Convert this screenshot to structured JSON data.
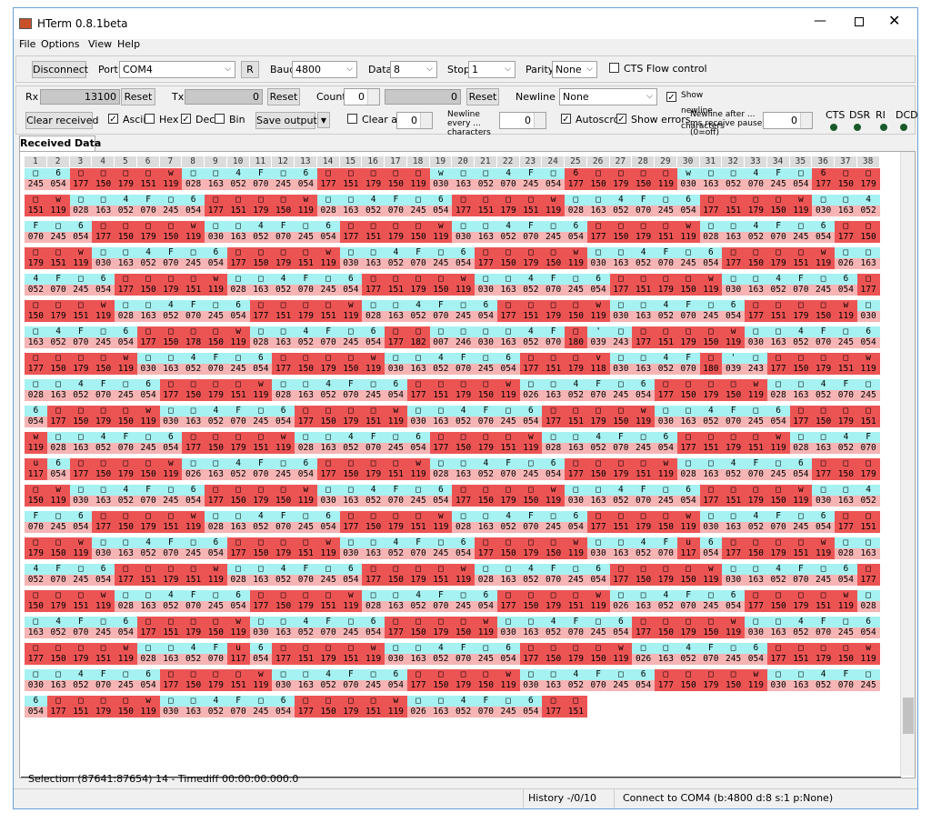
{
  "window": {
    "title": "HTerm 0.8.1beta"
  },
  "menu": [
    "File",
    "Options",
    "View",
    "Help"
  ],
  "connection": {
    "button": "Disconnect",
    "port_label": "Port",
    "port": "COM4",
    "refresh": "R",
    "baud_label": "Baud",
    "baud": "4800",
    "data_label": "Data",
    "data": "8",
    "stop_label": "Stop",
    "stop": "1",
    "parity_label": "Parity",
    "parity": "None",
    "cts_flow": "CTS Flow control",
    "cts_flow_checked": false
  },
  "counters": {
    "rx_label": "Rx",
    "rx": "13100",
    "rx_reset": "Reset",
    "tx_label": "Tx",
    "tx": "0",
    "tx_reset": "Reset",
    "count_label": "Count",
    "count": "0",
    "count_value": "0",
    "count_reset": "Reset",
    "newline_at_label": "Newline at",
    "newline_at": "None",
    "show_newline": "Show newline characters",
    "show_newline_checked": true
  },
  "display": {
    "clear_received": "Clear received",
    "ascii": "Ascii",
    "ascii_checked": true,
    "hex": "Hex",
    "hex_checked": false,
    "dec": "Dec",
    "dec_checked": true,
    "bin": "Bin",
    "bin_checked": false,
    "save_output": "Save output",
    "clear_at": "Clear at",
    "clear_at_checked": false,
    "clear_at_value": "0",
    "newline_every": "Newline every ... characters",
    "newline_every_value": "0",
    "autoscroll": "Autoscroll",
    "autoscroll_checked": true,
    "show_errors": "Show errors",
    "show_errors_checked": true,
    "newline_after": "Newline after ... ms receive pause (0=off)",
    "newline_after_value": "0",
    "signals": [
      "CTS",
      "DSR",
      "RI",
      "DCD"
    ]
  },
  "tab": "Received Data",
  "received": {
    "columns": [
      1,
      2,
      3,
      4,
      5,
      6,
      7,
      8,
      9,
      10,
      11,
      12,
      13,
      14,
      15,
      16,
      17,
      18,
      19,
      20,
      21,
      22,
      23,
      24,
      25,
      26,
      27,
      28,
      29,
      30,
      31,
      32,
      33,
      34,
      35,
      36,
      37,
      38
    ],
    "rows": [
      {
        "ascii": "□6□□□□w□□4F□6□□□□□w□□4F□6□□□□w□□4F□6□□□",
        "dec": [
          "245",
          "054",
          "177",
          "150",
          "179",
          "151",
          "119",
          "028",
          "163",
          "052",
          "070",
          "245",
          "054",
          "177",
          "151",
          "179",
          "150",
          "119",
          "030",
          "163",
          "052",
          "070",
          "245",
          "054",
          "177",
          "150",
          "179",
          "150",
          "119",
          "030",
          "163",
          "052",
          "070",
          "245",
          "054",
          "177",
          "150",
          "179"
        ]
      },
      {
        "ascii": "□w□□4F□6□□□□w□□4F□6□□□□w□□4F□6□□□□w□□4",
        "dec": [
          "151",
          "119",
          "028",
          "163",
          "052",
          "070",
          "245",
          "054",
          "177",
          "151",
          "179",
          "150",
          "119",
          "028",
          "163",
          "052",
          "070",
          "245",
          "054",
          "177",
          "151",
          "179",
          "151",
          "119",
          "028",
          "163",
          "052",
          "070",
          "245",
          "054",
          "177",
          "151",
          "179",
          "150",
          "119",
          "030",
          "163",
          "052"
        ]
      },
      {
        "ascii": "F□6□□□□w□□4F□6□□□□w□□4F□6□□□□w□□4F□6□□",
        "dec": [
          "070",
          "245",
          "054",
          "177",
          "150",
          "179",
          "150",
          "119",
          "030",
          "163",
          "052",
          "070",
          "245",
          "054",
          "177",
          "151",
          "179",
          "150",
          "119",
          "030",
          "163",
          "052",
          "070",
          "245",
          "054",
          "177",
          "150",
          "179",
          "151",
          "119",
          "028",
          "163",
          "052",
          "070",
          "245",
          "054",
          "177",
          "150"
        ]
      },
      {
        "ascii": "□□w□□4F□6□□□□w□□4F□6□□□□w□□4F□6□□□□w□□",
        "dec": [
          "179",
          "151",
          "119",
          "030",
          "163",
          "052",
          "070",
          "245",
          "054",
          "177",
          "150",
          "179",
          "151",
          "119",
          "030",
          "163",
          "052",
          "070",
          "245",
          "054",
          "177",
          "150",
          "179",
          "150",
          "119",
          "030",
          "163",
          "052",
          "070",
          "245",
          "054",
          "177",
          "150",
          "179",
          "151",
          "119",
          "026",
          "163"
        ]
      },
      {
        "ascii": "4F□6□□□□w□□4F□6□□□□w□□4F□6□□□□w□□4F□6□",
        "dec": [
          "052",
          "070",
          "245",
          "054",
          "177",
          "150",
          "179",
          "151",
          "119",
          "028",
          "163",
          "052",
          "070",
          "245",
          "054",
          "177",
          "151",
          "179",
          "150",
          "119",
          "030",
          "163",
          "052",
          "070",
          "245",
          "054",
          "177",
          "151",
          "179",
          "150",
          "119",
          "030",
          "163",
          "052",
          "070",
          "245",
          "054",
          "177"
        ]
      },
      {
        "ascii": "□□□w□□4F□6□□□□w□□4F□6□□□□w□□4F□6□□□□w□",
        "dec": [
          "150",
          "179",
          "151",
          "119",
          "028",
          "163",
          "052",
          "070",
          "245",
          "054",
          "177",
          "151",
          "179",
          "151",
          "119",
          "028",
          "163",
          "052",
          "070",
          "245",
          "054",
          "177",
          "151",
          "179",
          "150",
          "119",
          "030",
          "163",
          "052",
          "070",
          "245",
          "054",
          "177",
          "151",
          "179",
          "150",
          "119",
          "030"
        ]
      },
      {
        "ascii": "□4F□6□□□□w□□4F□6□□□□□□4F□'□□□□□w□□4F□6",
        "dec": [
          "163",
          "052",
          "070",
          "245",
          "054",
          "177",
          "150",
          "178",
          "150",
          "119",
          "028",
          "163",
          "052",
          "070",
          "245",
          "054",
          "177",
          "182",
          "007",
          "246",
          "030",
          "163",
          "052",
          "070",
          "180",
          "039",
          "243",
          "177",
          "151",
          "179",
          "150",
          "119",
          "030",
          "163",
          "052",
          "070",
          "245",
          "054"
        ]
      },
      {
        "ascii": "□□□□w□□4F□6□□□□w□□4F□6□□□v□□4F□'□□□□□w",
        "dec": [
          "177",
          "150",
          "179",
          "150",
          "119",
          "030",
          "163",
          "052",
          "070",
          "245",
          "054",
          "177",
          "150",
          "179",
          "150",
          "119",
          "030",
          "163",
          "052",
          "070",
          "245",
          "054",
          "177",
          "151",
          "179",
          "118",
          "030",
          "163",
          "052",
          "070",
          "180",
          "039",
          "243",
          "177",
          "150",
          "179",
          "151",
          "119"
        ]
      },
      {
        "ascii": "□□4F□6□□□□w□□4F□6□□□□w□□4F□6□□□□w□□4F□",
        "dec": [
          "028",
          "163",
          "052",
          "070",
          "245",
          "054",
          "177",
          "150",
          "179",
          "151",
          "119",
          "028",
          "163",
          "052",
          "070",
          "245",
          "054",
          "177",
          "151",
          "179",
          "150",
          "119",
          "026",
          "163",
          "052",
          "070",
          "245",
          "054",
          "177",
          "150",
          "179",
          "150",
          "119",
          "028",
          "163",
          "052",
          "070",
          "245"
        ]
      },
      {
        "ascii": "6□□□□w□□4F□6□□□□w□□4F□6□□□□w□□4F□6□□□□",
        "dec": [
          "054",
          "177",
          "150",
          "179",
          "150",
          "119",
          "030",
          "163",
          "052",
          "070",
          "245",
          "054",
          "177",
          "150",
          "179",
          "151",
          "119",
          "030",
          "163",
          "052",
          "070",
          "245",
          "054",
          "177",
          "151",
          "179",
          "150",
          "119",
          "030",
          "163",
          "052",
          "070",
          "245",
          "054",
          "177",
          "150",
          "179",
          "151"
        ]
      },
      {
        "ascii": "w□□4F□6□□□□w□□4F□6□□□□w□□4F□6□□□□w□□4F",
        "dec": [
          "119",
          "028",
          "163",
          "052",
          "070",
          "245",
          "054",
          "177",
          "150",
          "179",
          "151",
          "119",
          "028",
          "163",
          "052",
          "070",
          "245",
          "054",
          "177",
          "150",
          "179",
          "151",
          "119",
          "028",
          "163",
          "052",
          "070",
          "245",
          "054",
          "177",
          "151",
          "179",
          "151",
          "119",
          "028",
          "163",
          "052",
          "070"
        ]
      },
      {
        "ascii": "u6□□□□w□□4F□6□□□□w□□4F□6□□□□w□□4F□6□□□",
        "dec": [
          "117",
          "054",
          "177",
          "150",
          "179",
          "150",
          "119",
          "026",
          "163",
          "052",
          "070",
          "245",
          "054",
          "177",
          "150",
          "179",
          "151",
          "119",
          "028",
          "163",
          "052",
          "070",
          "245",
          "054",
          "177",
          "150",
          "179",
          "151",
          "119",
          "028",
          "163",
          "052",
          "070",
          "245",
          "054",
          "177",
          "150",
          "179"
        ]
      },
      {
        "ascii": "□w□□4F□6□□□□w□□4F□6□□□□w□□4F□6□□□□w□□4",
        "dec": [
          "150",
          "119",
          "030",
          "163",
          "052",
          "070",
          "245",
          "054",
          "177",
          "150",
          "179",
          "150",
          "119",
          "030",
          "163",
          "052",
          "070",
          "245",
          "054",
          "177",
          "150",
          "179",
          "150",
          "119",
          "030",
          "163",
          "052",
          "070",
          "245",
          "054",
          "177",
          "151",
          "179",
          "150",
          "119",
          "030",
          "163",
          "052"
        ]
      },
      {
        "ascii": "F□6□□□□w□□4F□6□□□□w□□4F□6□□□□w□□4F□6□□",
        "dec": [
          "070",
          "245",
          "054",
          "177",
          "150",
          "179",
          "151",
          "119",
          "028",
          "163",
          "052",
          "070",
          "245",
          "054",
          "177",
          "150",
          "179",
          "151",
          "119",
          "028",
          "163",
          "052",
          "070",
          "245",
          "054",
          "177",
          "151",
          "179",
          "150",
          "119",
          "030",
          "163",
          "052",
          "070",
          "245",
          "054",
          "177",
          "151"
        ]
      },
      {
        "ascii": "□□w□□4F□6□□□□w□□4F□6□□□□w□□4Fu6□□□□w□□",
        "dec": [
          "179",
          "150",
          "119",
          "030",
          "163",
          "052",
          "070",
          "245",
          "054",
          "177",
          "150",
          "179",
          "151",
          "119",
          "030",
          "163",
          "052",
          "070",
          "245",
          "054",
          "177",
          "150",
          "179",
          "150",
          "119",
          "030",
          "163",
          "052",
          "070",
          "117",
          "054",
          "177",
          "150",
          "179",
          "151",
          "119",
          "028",
          "163"
        ]
      },
      {
        "ascii": "4F□6□□□□w□□4F□6□□□□w□□4F□6□□□□w□□4F□6□",
        "dec": [
          "052",
          "070",
          "245",
          "054",
          "177",
          "151",
          "179",
          "151",
          "119",
          "028",
          "163",
          "052",
          "070",
          "245",
          "054",
          "177",
          "150",
          "179",
          "151",
          "119",
          "028",
          "163",
          "052",
          "070",
          "245",
          "054",
          "177",
          "150",
          "179",
          "150",
          "119",
          "030",
          "163",
          "052",
          "070",
          "245",
          "054",
          "177"
        ]
      },
      {
        "ascii": "□□□w□□4F□6□□□□w□□4F□6□□□□w□□4F□6□□□□w□",
        "dec": [
          "150",
          "179",
          "151",
          "119",
          "028",
          "163",
          "052",
          "070",
          "245",
          "054",
          "177",
          "150",
          "179",
          "151",
          "119",
          "028",
          "163",
          "052",
          "070",
          "245",
          "054",
          "177",
          "150",
          "179",
          "151",
          "119",
          "026",
          "163",
          "052",
          "070",
          "245",
          "054",
          "177",
          "150",
          "179",
          "151",
          "119",
          "028"
        ]
      },
      {
        "ascii": "□4F□6□□□□w□□4F□6□□□□w□□4F□6□□□□w□□4F□6",
        "dec": [
          "163",
          "052",
          "070",
          "245",
          "054",
          "177",
          "151",
          "179",
          "150",
          "119",
          "030",
          "163",
          "052",
          "070",
          "245",
          "054",
          "177",
          "150",
          "179",
          "150",
          "119",
          "030",
          "163",
          "052",
          "070",
          "245",
          "054",
          "177",
          "150",
          "179",
          "150",
          "119",
          "030",
          "163",
          "052",
          "070",
          "245",
          "054"
        ]
      },
      {
        "ascii": "□□□□w□□4Fu6□□□□w□□4F□6□□□□w□□4F□6□□□□w",
        "dec": [
          "177",
          "150",
          "179",
          "151",
          "119",
          "028",
          "163",
          "052",
          "070",
          "117",
          "054",
          "177",
          "151",
          "179",
          "151",
          "119",
          "030",
          "163",
          "052",
          "070",
          "245",
          "054",
          "177",
          "150",
          "179",
          "150",
          "119",
          "026",
          "163",
          "052",
          "070",
          "245",
          "054",
          "177",
          "151",
          "179",
          "150",
          "119"
        ]
      },
      {
        "ascii": "□□4F□6□□□□w□□4F□6□□□□w□□4F□6□□□□w□□4F□",
        "dec": [
          "030",
          "163",
          "052",
          "070",
          "245",
          "054",
          "177",
          "150",
          "179",
          "151",
          "119",
          "030",
          "163",
          "052",
          "070",
          "245",
          "054",
          "177",
          "150",
          "179",
          "150",
          "119",
          "030",
          "163",
          "052",
          "070",
          "245",
          "054",
          "177",
          "150",
          "179",
          "150",
          "119",
          "030",
          "163",
          "052",
          "070",
          "245"
        ]
      },
      {
        "ascii": "6□□□□w□□4F□6□□□□w□□4F□6□□",
        "dec": [
          "054",
          "177",
          "151",
          "179",
          "150",
          "119",
          "030",
          "163",
          "052",
          "070",
          "245",
          "054",
          "177",
          "150",
          "179",
          "151",
          "119",
          "026",
          "163",
          "052",
          "070",
          "245",
          "054",
          "177",
          "151"
        ]
      }
    ]
  },
  "status": {
    "selection": "Selection (87641:87654) 14  -  Timediff 00:00:00.000.0",
    "history": "History -/0/10",
    "connection": "Connect to COM4 (b:4800 d:8 s:1 p:None)"
  }
}
